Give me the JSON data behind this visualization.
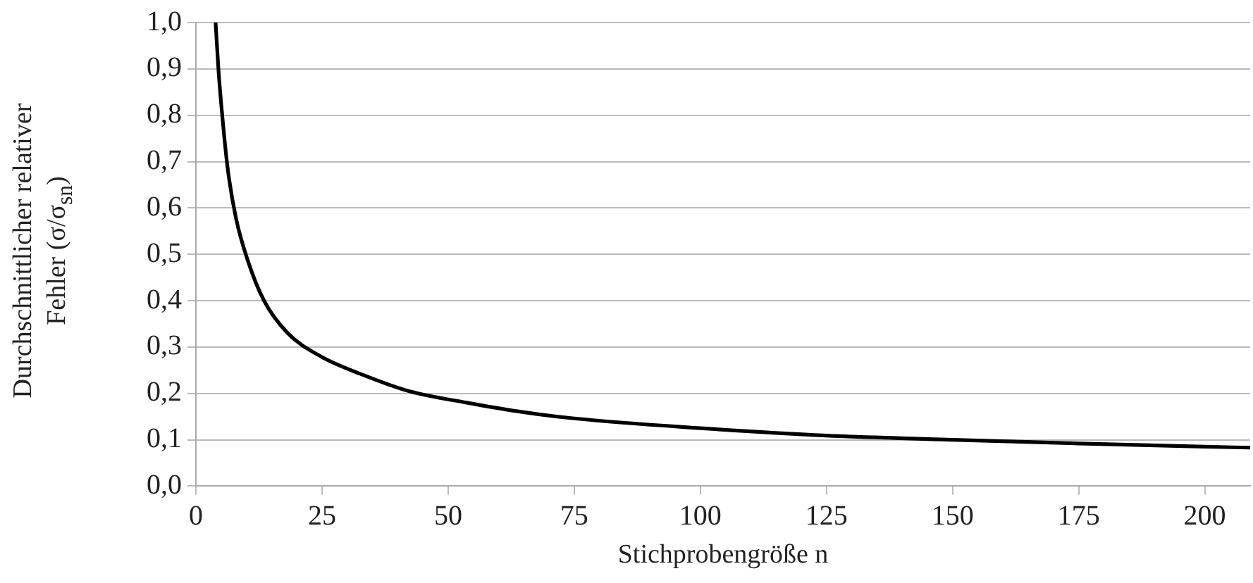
{
  "chart_data": {
    "type": "line",
    "xlabel": "Stichprobengröße n",
    "ylabel": "Durchschnittlicher relativer Fehler (σ/σ$_{sn}$)",
    "x": [
      3.9,
      4.5,
      5.3,
      6.3,
      7.9,
      10.3,
      13.5,
      18.2,
      24.7,
      33.1,
      42.5,
      53.7,
      64,
      75,
      100,
      125,
      150,
      175,
      200,
      209
    ],
    "series": [
      {
        "color": "#000000",
        "values": [
          1.0,
          0.893,
          0.79,
          0.685,
          0.58,
          0.486,
          0.4,
          0.33,
          0.28,
          0.24,
          0.204,
          0.18,
          0.161,
          0.146,
          0.125,
          0.109,
          0.1,
          0.092,
          0.085,
          0.083
        ]
      }
    ],
    "xlim": [
      0,
      209
    ],
    "xticks": [
      0,
      25,
      50,
      75,
      100,
      125,
      150,
      175,
      200
    ],
    "ylim": [
      0,
      1
    ],
    "yticks": [
      {
        "value": 0,
        "label": "0,0"
      },
      {
        "value": 0.1,
        "label": "0,1"
      },
      {
        "value": 0.2,
        "label": "0,2"
      },
      {
        "value": 0.3,
        "label": "0,3"
      },
      {
        "value": 0.4,
        "label": "0,4"
      },
      {
        "value": 0.5,
        "label": "0,5"
      },
      {
        "value": 0.6,
        "label": "0,6"
      },
      {
        "value": 0.7,
        "label": "0,7"
      },
      {
        "value": 0.8,
        "label": "0,8"
      },
      {
        "value": 0.9,
        "label": "0,9"
      },
      {
        "value": 1,
        "label": "1,0"
      }
    ],
    "grid": "y",
    "legend": false,
    "marker": "none",
    "line_style": "solid"
  }
}
